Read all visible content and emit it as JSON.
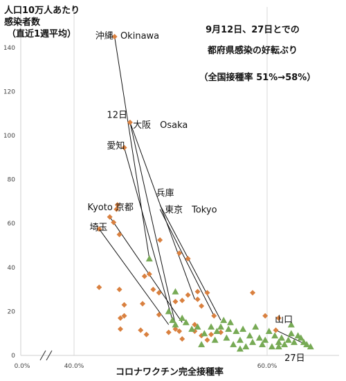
{
  "chart_data": {
    "type": "scatter",
    "title": [
      "9月12日、27日とでの",
      "都府県感染の好転ぶり"
    ],
    "subtitle": "（全国接種率 51%→58%）",
    "ylabel": [
      "人口10万人あたり",
      "感染者数",
      "（直近1週平均）"
    ],
    "xlabel": "コロナワクチン完全接種率",
    "xlim": [
      0.35,
      0.66
    ],
    "ylim": [
      0,
      145
    ],
    "x_ticks": [
      {
        "value": 0.0,
        "label": "0.0%"
      },
      {
        "value": 0.4,
        "label": "40.0%"
      },
      {
        "value": 0.6,
        "label": "60.0%"
      }
    ],
    "y_ticks": [
      0,
      20,
      40,
      60,
      80,
      100,
      120,
      140
    ],
    "axis_break": "//",
    "grid": "vertical",
    "series": [
      {
        "label": "12日",
        "marker": "diamond",
        "color": "#d9803f",
        "points": [
          [
            0.442,
            145
          ],
          [
            0.458,
            106
          ],
          [
            0.452,
            94.5
          ],
          [
            0.445,
            68.5
          ],
          [
            0.444,
            66.5
          ],
          [
            0.437,
            63
          ],
          [
            0.441,
            60.5
          ],
          [
            0.426,
            57.5
          ],
          [
            0.447,
            55
          ],
          [
            0.489,
            52.5
          ],
          [
            0.518,
            44
          ],
          [
            0.509,
            46.5
          ],
          [
            0.478,
            37
          ],
          [
            0.473,
            36
          ],
          [
            0.426,
            31
          ],
          [
            0.447,
            30
          ],
          [
            0.482,
            30
          ],
          [
            0.488,
            28.5
          ],
          [
            0.518,
            27.5
          ],
          [
            0.528,
            29
          ],
          [
            0.538,
            28.5
          ],
          [
            0.585,
            28.5
          ],
          [
            0.452,
            23
          ],
          [
            0.471,
            23.5
          ],
          [
            0.505,
            24.5
          ],
          [
            0.512,
            25
          ],
          [
            0.528,
            25.5
          ],
          [
            0.532,
            22.5
          ],
          [
            0.452,
            18
          ],
          [
            0.448,
            17
          ],
          [
            0.488,
            18.5
          ],
          [
            0.545,
            18
          ],
          [
            0.598,
            18
          ],
          [
            0.612,
            17
          ],
          [
            0.448,
            12
          ],
          [
            0.469,
            11.5
          ],
          [
            0.475,
            9.5
          ],
          [
            0.498,
            10.5
          ],
          [
            0.505,
            12
          ],
          [
            0.509,
            11
          ],
          [
            0.525,
            14
          ],
          [
            0.525,
            11
          ],
          [
            0.532,
            9
          ],
          [
            0.542,
            9.5
          ],
          [
            0.552,
            10.5
          ],
          [
            0.512,
            7.5
          ],
          [
            0.538,
            7
          ],
          [
            0.609,
            11.5
          ]
        ]
      },
      {
        "label": "27日",
        "marker": "triangle",
        "color": "#77aa55",
        "points": [
          [
            0.478,
            44
          ],
          [
            0.498,
            20
          ],
          [
            0.502,
            16
          ],
          [
            0.505,
            14
          ],
          [
            0.505,
            29
          ],
          [
            0.512,
            17
          ],
          [
            0.516,
            15
          ],
          [
            0.522,
            12
          ],
          [
            0.528,
            13
          ],
          [
            0.535,
            10
          ],
          [
            0.542,
            13
          ],
          [
            0.546,
            7
          ],
          [
            0.548,
            11
          ],
          [
            0.552,
            13
          ],
          [
            0.555,
            16
          ],
          [
            0.558,
            8
          ],
          [
            0.562,
            15
          ],
          [
            0.565,
            5
          ],
          [
            0.568,
            11
          ],
          [
            0.572,
            7
          ],
          [
            0.575,
            12
          ],
          [
            0.578,
            4
          ],
          [
            0.582,
            9
          ],
          [
            0.585,
            6
          ],
          [
            0.588,
            13
          ],
          [
            0.592,
            8
          ],
          [
            0.595,
            5
          ],
          [
            0.598,
            7
          ],
          [
            0.602,
            11
          ],
          [
            0.605,
            4
          ],
          [
            0.608,
            9
          ],
          [
            0.612,
            6
          ],
          [
            0.615,
            8
          ],
          [
            0.618,
            5
          ],
          [
            0.622,
            7
          ],
          [
            0.625,
            10
          ],
          [
            0.628,
            6
          ],
          [
            0.632,
            9
          ],
          [
            0.635,
            8
          ],
          [
            0.638,
            6
          ],
          [
            0.641,
            5
          ],
          [
            0.645,
            4
          ],
          [
            0.625,
            14
          ],
          [
            0.56,
            12
          ],
          [
            0.532,
            5
          ],
          [
            0.572,
            3
          ],
          [
            0.612,
            4
          ]
        ]
      }
    ],
    "connectors": [
      {
        "from": [
          0.442,
          145
        ],
        "to": [
          0.478,
          44
        ]
      },
      {
        "from": [
          0.458,
          106
        ],
        "to": [
          0.525,
          25.5
        ]
      },
      {
        "from": [
          0.458,
          106
        ],
        "to": [
          0.505,
          14
        ]
      },
      {
        "from": [
          0.452,
          94.5
        ],
        "to": [
          0.502,
          16
        ]
      },
      {
        "from": [
          0.489,
          68.5
        ],
        "to": [
          0.552,
          16
        ]
      },
      {
        "from": [
          0.489,
          66.5
        ],
        "to": [
          0.545,
          18
        ]
      },
      {
        "from": [
          0.437,
          63
        ],
        "to": [
          0.512,
          15
        ]
      },
      {
        "from": [
          0.426,
          57.5
        ],
        "to": [
          0.498,
          14
        ]
      },
      {
        "from": [
          0.609,
          11.5
        ],
        "to": [
          0.645,
          4
        ]
      }
    ],
    "annotations": [
      {
        "text": "沖縄",
        "x": 0.422,
        "y": 144
      },
      {
        "text": "Okinawa",
        "x": 0.448,
        "y": 144
      },
      {
        "text": "12日",
        "x": 0.434,
        "y": 108
      },
      {
        "text": "大阪　Osaka",
        "x": 0.461,
        "y": 103.5
      },
      {
        "text": "愛知",
        "x": 0.434,
        "y": 94
      },
      {
        "text": "兵庫",
        "x": 0.485,
        "y": 72.5
      },
      {
        "text": "東京　Tokyo",
        "x": 0.494,
        "y": 65
      },
      {
        "text": "Kyoto 京都",
        "x": 0.414,
        "y": 66
      },
      {
        "text": "埼玉",
        "x": 0.416,
        "y": 57
      },
      {
        "text": "山口",
        "x": 0.608,
        "y": 15
      },
      {
        "text": "27日",
        "x": 0.618,
        "y": -2.5
      }
    ]
  }
}
